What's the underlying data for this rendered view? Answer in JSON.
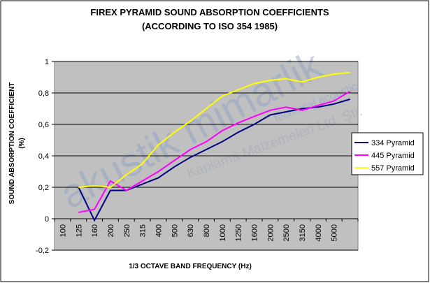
{
  "chart_data": {
    "type": "line",
    "title": "FIREX PYRAMID SOUND ABSORPTION COEFFICIENTS",
    "subtitle": "(ACCORDING TO ISO 354 1985)",
    "y_label": "SOUND ABSORPTION COEFFICIENT",
    "y_label_unit": "(%)",
    "x_label": "1/3 OCTAVE BAND FREQUENCY (Hz)",
    "annotations": [
      "akustik mimarlik",
      "technical acoustic",
      "Kaplama Malzemeleri Ltd. Şti."
    ],
    "categories": [
      "100",
      "125",
      "160",
      "200",
      "250",
      "315",
      "400",
      "500",
      "630",
      "800",
      "1000",
      "1250",
      "1600",
      "2000",
      "2500",
      "3150",
      "4000",
      "5000",
      null
    ],
    "series": [
      {
        "name": "334 Pyramid",
        "color": "#000080",
        "values": [
          null,
          0.2,
          -0.01,
          0.18,
          0.18,
          0.22,
          0.26,
          0.33,
          0.39,
          0.44,
          0.49,
          0.55,
          0.6,
          0.66,
          0.68,
          0.7,
          0.71,
          0.73,
          0.76
        ]
      },
      {
        "name": "445 Pyramid",
        "color": "#ff00ff",
        "values": [
          null,
          0.04,
          0.06,
          0.24,
          0.18,
          0.24,
          0.3,
          0.37,
          0.44,
          0.49,
          0.56,
          0.61,
          0.65,
          0.69,
          0.71,
          0.69,
          0.72,
          0.75,
          0.81
        ]
      },
      {
        "name": "557 Pyramid",
        "color": "#ffff00",
        "values": [
          null,
          0.2,
          0.21,
          0.2,
          0.28,
          0.35,
          0.47,
          0.55,
          0.62,
          0.7,
          0.78,
          0.82,
          0.86,
          0.88,
          0.89,
          0.87,
          0.9,
          0.92,
          0.93
        ]
      }
    ],
    "ylim": [
      -0.2,
      1
    ],
    "yticks": [
      {
        "value": -0.2,
        "label": "-0,2"
      },
      0,
      {
        "value": 0.2,
        "label": "0,2"
      },
      {
        "value": 0.4,
        "label": "0,4"
      },
      {
        "value": 0.6,
        "label": "0,6"
      },
      {
        "value": 0.8,
        "label": "0,8"
      },
      1
    ],
    "grid": true,
    "legend": "right"
  }
}
